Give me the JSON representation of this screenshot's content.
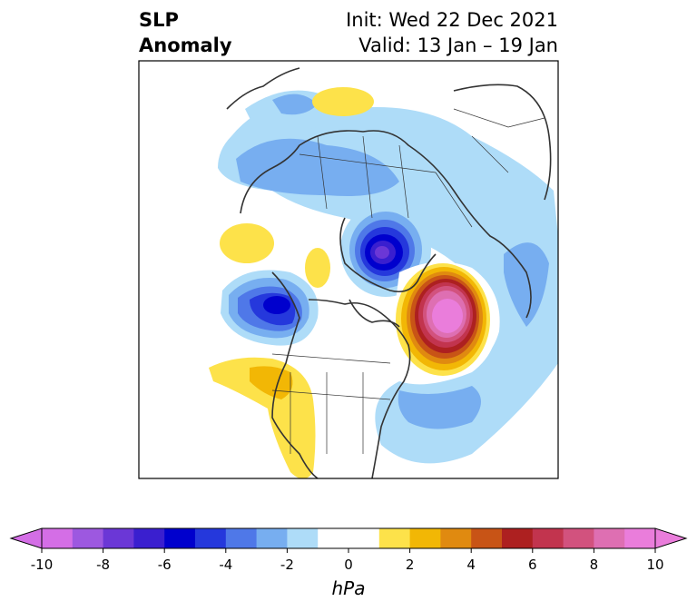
{
  "title": {
    "left_line1": "SLP",
    "left_line2": "Anomaly",
    "right_line1": "Init: Wed 22 Dec 2021",
    "right_line2": "Valid: 13 Jan – 19 Jan"
  },
  "colorbar": {
    "unit_label": "hPa",
    "tick_labels": [
      "-10",
      "-8",
      "-6",
      "-4",
      "-2",
      "0",
      "2",
      "4",
      "6",
      "8",
      "10"
    ],
    "colors": [
      "#d46ee6",
      "#9d58e0",
      "#6b37d6",
      "#3a1fcf",
      "#0000cd",
      "#2538dc",
      "#4f78e8",
      "#77aef0",
      "#aedcf8",
      "#ffffff",
      "#ffffff",
      "#fde24a",
      "#f2b705",
      "#e08a10",
      "#c85416",
      "#ad2020",
      "#c2344e",
      "#d2527e",
      "#de6fb2",
      "#ea7ddb"
    ]
  },
  "map": {
    "features": [
      {
        "name": "negative-anomaly-northeast-asia",
        "sign": "negative",
        "peak": -7
      },
      {
        "name": "negative-anomaly-gulf-of-alaska",
        "sign": "negative",
        "peak": -6
      },
      {
        "name": "positive-anomaly-north-atlantic",
        "sign": "positive",
        "peak": 10
      },
      {
        "name": "negative-anomaly-eurasia",
        "sign": "negative",
        "peak": -3
      },
      {
        "name": "positive-anomaly-arctic-russia",
        "sign": "positive",
        "peak": 2
      },
      {
        "name": "positive-anomaly-western-us",
        "sign": "positive",
        "peak": 3
      }
    ]
  }
}
